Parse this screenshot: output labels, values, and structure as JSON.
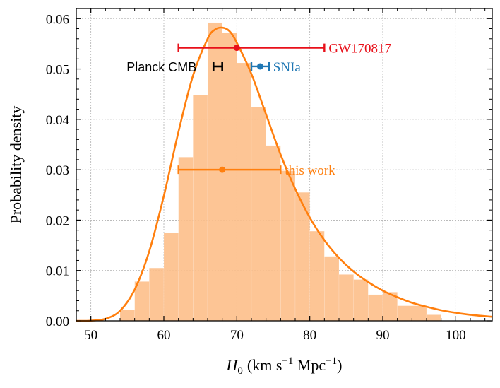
{
  "chart_data": {
    "type": "bar",
    "title": "",
    "xlabel": {
      "italic": "H",
      "sub": "0",
      "rest_open": "(km s",
      "sup1": "−1",
      "rest_mid": " Mpc",
      "sup2": "−1",
      "rest_close": ")"
    },
    "ylabel": "Probability density",
    "xlim": [
      48,
      105
    ],
    "ylim": [
      0,
      0.062
    ],
    "x_ticks": [
      50,
      60,
      70,
      80,
      90,
      100
    ],
    "x_tick_labels": [
      "50",
      "60",
      "70",
      "80",
      "90",
      "100"
    ],
    "y_ticks": [
      0.0,
      0.01,
      0.02,
      0.03,
      0.04,
      0.05,
      0.06
    ],
    "y_tick_labels": [
      "0.00",
      "0.01",
      "0.02",
      "0.03",
      "0.04",
      "0.05",
      "0.06"
    ],
    "grid": true,
    "histogram": {
      "bin_width": 2.0,
      "bins": [
        {
          "start": 54,
          "value": 0.0022
        },
        {
          "start": 56,
          "value": 0.0078
        },
        {
          "start": 58,
          "value": 0.0105
        },
        {
          "start": 60,
          "value": 0.0175
        },
        {
          "start": 62,
          "value": 0.0325
        },
        {
          "start": 64,
          "value": 0.0448
        },
        {
          "start": 66,
          "value": 0.0592
        },
        {
          "start": 68,
          "value": 0.0572
        },
        {
          "start": 70,
          "value": 0.0512
        },
        {
          "start": 72,
          "value": 0.0425
        },
        {
          "start": 74,
          "value": 0.0348
        },
        {
          "start": 76,
          "value": 0.0298
        },
        {
          "start": 78,
          "value": 0.0255
        },
        {
          "start": 80,
          "value": 0.0178
        },
        {
          "start": 82,
          "value": 0.0128
        },
        {
          "start": 84,
          "value": 0.0092
        },
        {
          "start": 86,
          "value": 0.0082
        },
        {
          "start": 88,
          "value": 0.0052
        },
        {
          "start": 90,
          "value": 0.0057
        },
        {
          "start": 92,
          "value": 0.003
        },
        {
          "start": 94,
          "value": 0.003
        },
        {
          "start": 96,
          "value": 0.0012
        }
      ],
      "color": "#fdbf8a"
    },
    "curve": {
      "color": "#ff7f0e",
      "points": [
        [
          48,
          0.0
        ],
        [
          50,
          4e-05
        ],
        [
          52,
          0.0004
        ],
        [
          54,
          0.002
        ],
        [
          56,
          0.0062
        ],
        [
          58,
          0.0138
        ],
        [
          60,
          0.0248
        ],
        [
          62,
          0.0375
        ],
        [
          64,
          0.0487
        ],
        [
          66,
          0.056
        ],
        [
          67,
          0.0578
        ],
        [
          68,
          0.0582
        ],
        [
          69,
          0.0575
        ],
        [
          70,
          0.0552
        ],
        [
          72,
          0.049
        ],
        [
          74,
          0.041
        ],
        [
          76,
          0.033
        ],
        [
          78,
          0.0262
        ],
        [
          80,
          0.0205
        ],
        [
          82,
          0.016
        ],
        [
          84,
          0.0125
        ],
        [
          86,
          0.0098
        ],
        [
          88,
          0.0077
        ],
        [
          90,
          0.006
        ],
        [
          92,
          0.0047
        ],
        [
          94,
          0.0036
        ],
        [
          96,
          0.0028
        ],
        [
          98,
          0.0021
        ],
        [
          100,
          0.0016
        ],
        [
          102,
          0.0012
        ],
        [
          105,
          0.0008
        ]
      ]
    },
    "errorbars": [
      {
        "label": "GW170817",
        "center": 70.0,
        "low": 62.0,
        "high": 82.0,
        "y": 0.0542,
        "color": "#e8101a",
        "label_side": "right"
      },
      {
        "label": "Planck CMB",
        "center": 67.4,
        "low": 66.8,
        "high": 68.0,
        "y": 0.0505,
        "color": "#000000",
        "label_side": "left"
      },
      {
        "label": "SNIa",
        "center": 73.2,
        "low": 72.0,
        "high": 74.4,
        "y": 0.0505,
        "color": "#1f77b4",
        "label_side": "right"
      },
      {
        "label": "this work",
        "center": 68.0,
        "low": 62.0,
        "high": 76.0,
        "y": 0.03,
        "color": "#ff7f0e",
        "label_side": "right"
      }
    ]
  }
}
